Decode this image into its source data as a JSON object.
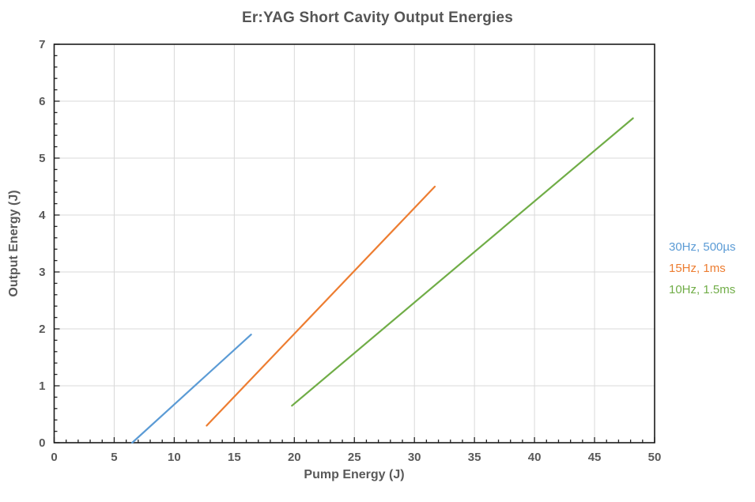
{
  "chart_data": {
    "type": "line",
    "title": "Er:YAG Short Cavity Output Energies",
    "xlabel": "Pump Energy (J)",
    "ylabel": "Output Energy (J)",
    "xlim": [
      0,
      50
    ],
    "ylim": [
      0,
      7
    ],
    "x_major_step": 5,
    "x_minor_step": 1,
    "y_major_step": 1,
    "y_minor_step": 0.2,
    "grid": true,
    "legend_position": "right-outside",
    "series": [
      {
        "name": "30Hz, 500µs",
        "color": "#5B9BD5",
        "points": [
          [
            6.5,
            0.0
          ],
          [
            16.4,
            1.9
          ]
        ]
      },
      {
        "name": "15Hz, 1ms",
        "color": "#ED7D31",
        "points": [
          [
            12.7,
            0.3
          ],
          [
            31.7,
            4.5
          ]
        ]
      },
      {
        "name": "10Hz, 1.5ms",
        "color": "#70AD47",
        "points": [
          [
            19.8,
            0.65
          ],
          [
            48.2,
            5.7
          ]
        ]
      }
    ],
    "colors": {
      "grid": "#D9D9D9",
      "spine": "#1a1a1a",
      "tick": "#262626",
      "label": "#595959",
      "title": "#555555",
      "background": "#ffffff"
    }
  }
}
